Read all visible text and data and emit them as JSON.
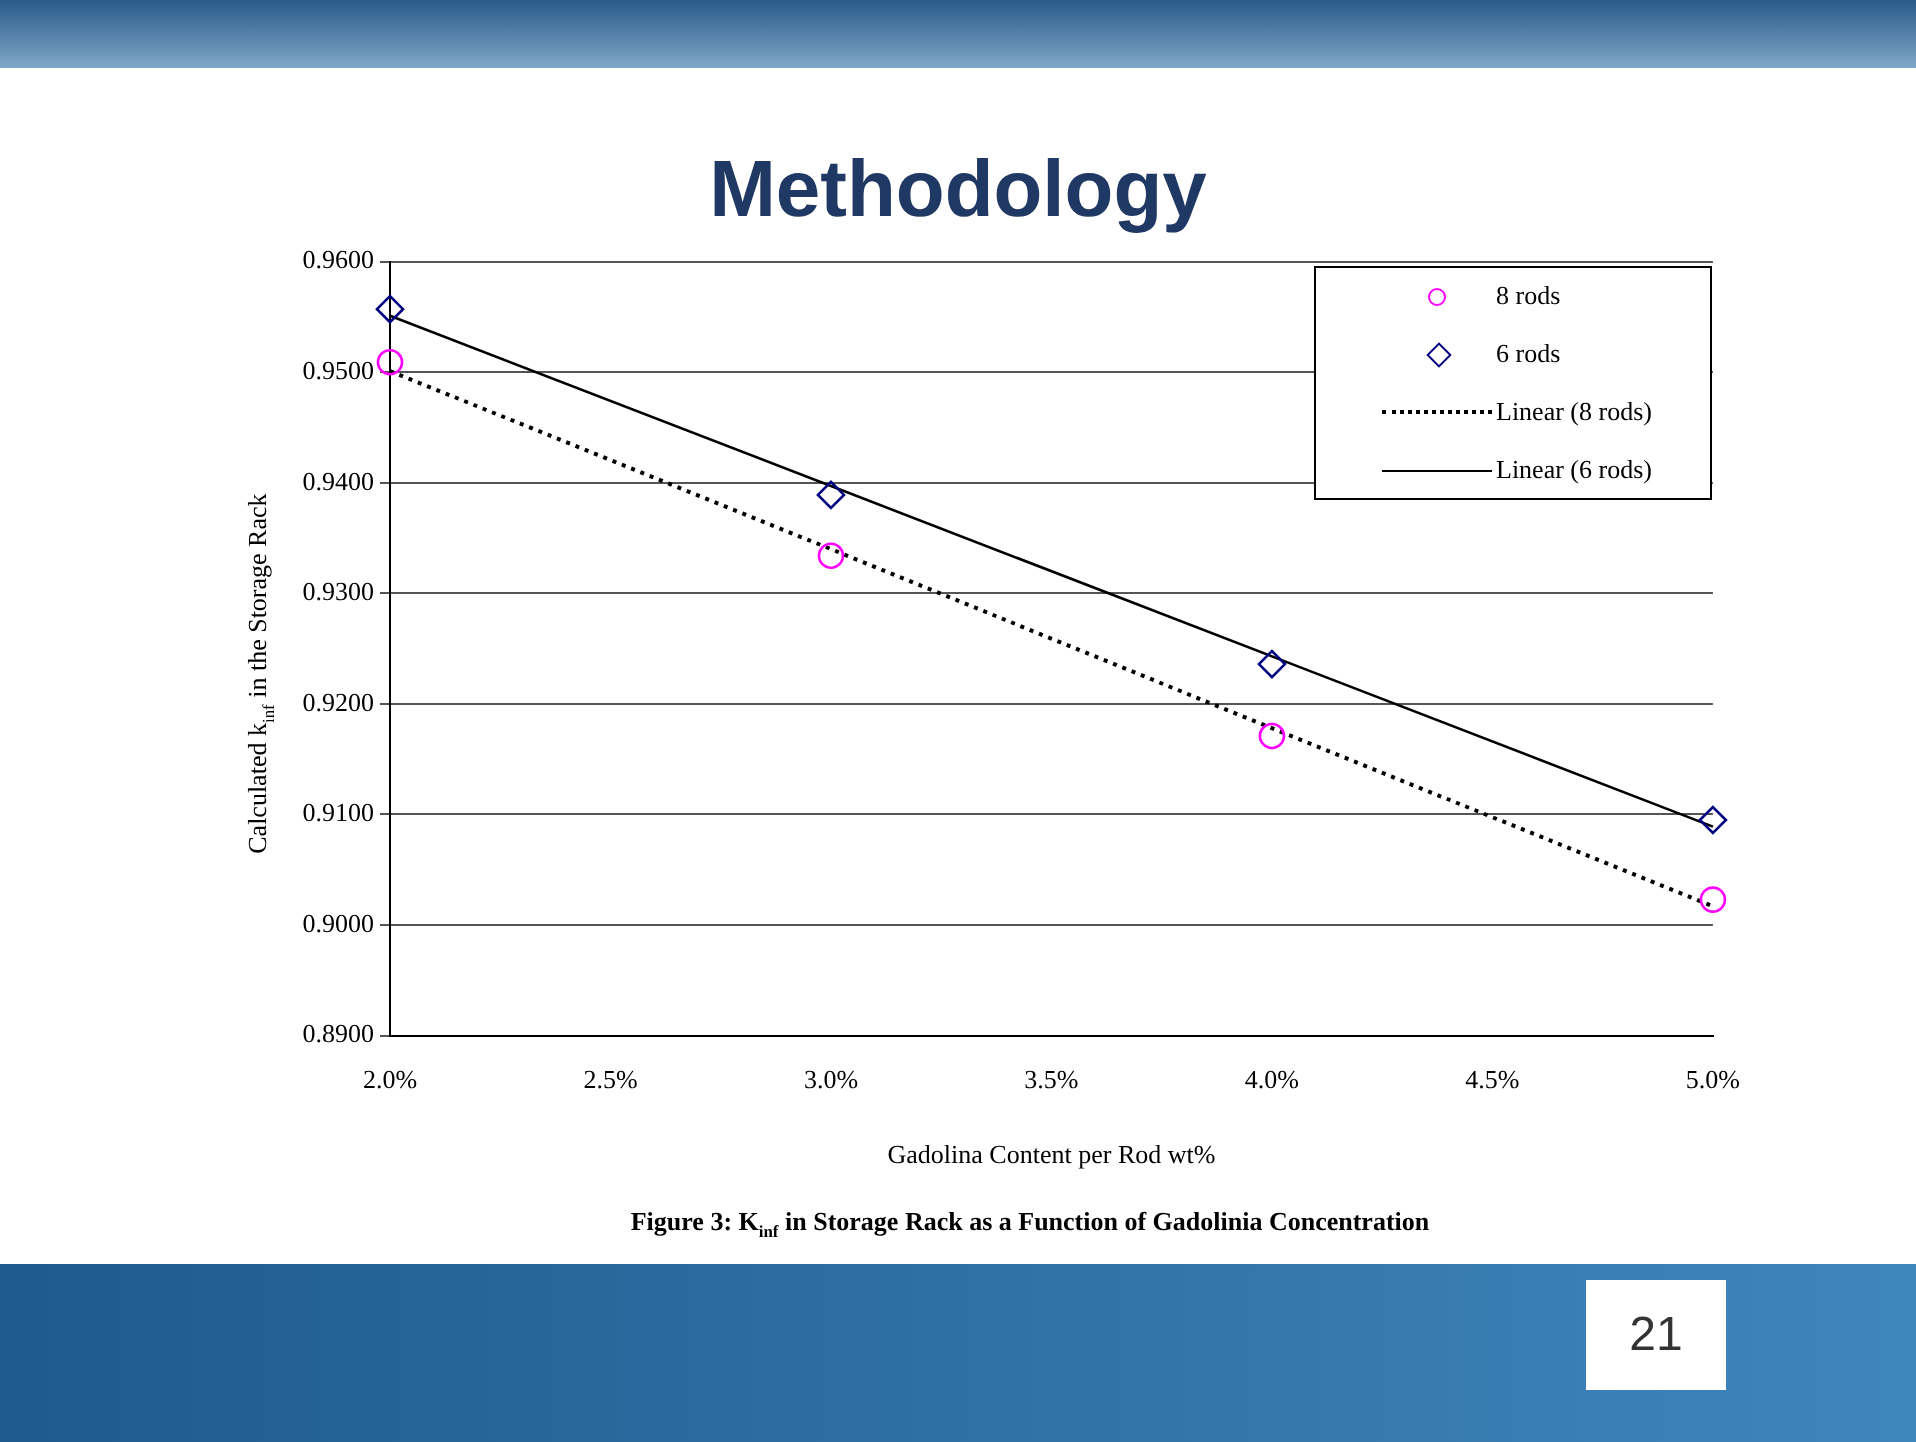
{
  "chart_data": {
    "type": "scatter",
    "title": "Methodology",
    "xlabel": "Gadolina Content per Rod wt%",
    "ylabel": "Calculated k$_{inf}$ in the Storage Rack",
    "x": [
      2.0,
      3.0,
      4.0,
      5.0
    ],
    "series": [
      {
        "name": "8 rods",
        "type": "scatter",
        "marker": "circle",
        "color": "#ff00ff",
        "values": [
          0.9509,
          0.9334,
          0.9171,
          0.9023
        ]
      },
      {
        "name": "6 rods",
        "type": "scatter",
        "marker": "diamond",
        "color": "#000080",
        "values": [
          0.9557,
          0.9389,
          0.9236,
          0.9095
        ]
      },
      {
        "name": "Linear (8 rods)",
        "type": "line",
        "line_style": "dotted",
        "marker": "none",
        "color": "#000000",
        "values": [
          0.9501,
          0.934,
          0.9178,
          0.9017
        ]
      },
      {
        "name": "Linear (6 rods)",
        "type": "line",
        "line_style": "solid",
        "marker": "none",
        "color": "#000000",
        "values": [
          0.9551,
          0.9397,
          0.9243,
          0.9089
        ]
      }
    ],
    "xlim": [
      2.0,
      5.0
    ],
    "xticks": [
      {
        "value": 2.0,
        "label": "2.0%"
      },
      {
        "value": 2.5,
        "label": "2.5%"
      },
      {
        "value": 3.0,
        "label": "3.0%"
      },
      {
        "value": 3.5,
        "label": "3.5%"
      },
      {
        "value": 4.0,
        "label": "4.0%"
      },
      {
        "value": 4.5,
        "label": "4.5%"
      },
      {
        "value": 5.0,
        "label": "5.0%"
      }
    ],
    "ylim": [
      0.89,
      0.96
    ],
    "yticks": [
      {
        "value": 0.89,
        "label": "0.8900"
      },
      {
        "value": 0.9,
        "label": "0.9000"
      },
      {
        "value": 0.91,
        "label": "0.9100"
      },
      {
        "value": 0.92,
        "label": "0.9200"
      },
      {
        "value": 0.93,
        "label": "0.9300"
      },
      {
        "value": 0.94,
        "label": "0.9400"
      },
      {
        "value": 0.95,
        "label": "0.9500"
      },
      {
        "value": 0.96,
        "label": "0.9600"
      }
    ],
    "grid": "y",
    "legend": "top right",
    "annotations": [
      "Figure 3: K$_{inf}$ in Storage Rack as a Function of Gadolinia Concentration",
      "21"
    ]
  }
}
